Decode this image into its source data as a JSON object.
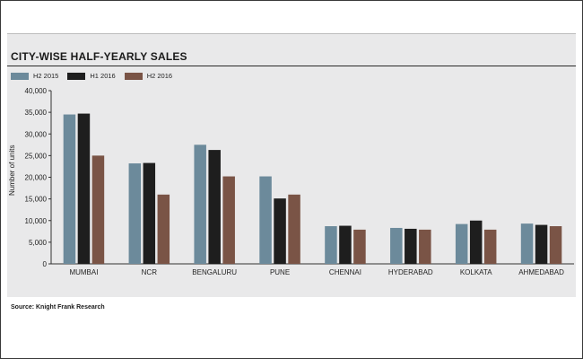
{
  "source": "Source: Knight Frank Research",
  "colors": {
    "frame": "#3a3a3a",
    "panel": "#e9e9ea"
  },
  "chart_data": {
    "type": "bar",
    "title": "CITY-WISE HALF-YEARLY SALES",
    "ylabel": "Number of units",
    "xlabel": "",
    "ylim": [
      0,
      40000
    ],
    "yticks": [
      "0",
      "5,000",
      "10,000",
      "15,000",
      "20,000",
      "25,000",
      "30,000",
      "35,000",
      "40,000"
    ],
    "categories": [
      "MUMBAI",
      "NCR",
      "BENGALURU",
      "PUNE",
      "CHENNAI",
      "HYDERABAD",
      "KOLKATA",
      "AHMEDABAD"
    ],
    "series": [
      {
        "name": "H2 2015",
        "color": "#6c8a9b",
        "values": [
          34500,
          23200,
          27500,
          20200,
          8700,
          8300,
          9200,
          9300
        ]
      },
      {
        "name": "H1 2016",
        "color": "#1e1e1e",
        "values": [
          34700,
          23300,
          26300,
          15100,
          8800,
          8100,
          10000,
          9000
        ]
      },
      {
        "name": "H2 2016",
        "color": "#7a5446",
        "values": [
          25000,
          16000,
          20200,
          16000,
          7900,
          7900,
          7900,
          8700
        ]
      }
    ],
    "legend_position": "top-left",
    "grid": false
  }
}
